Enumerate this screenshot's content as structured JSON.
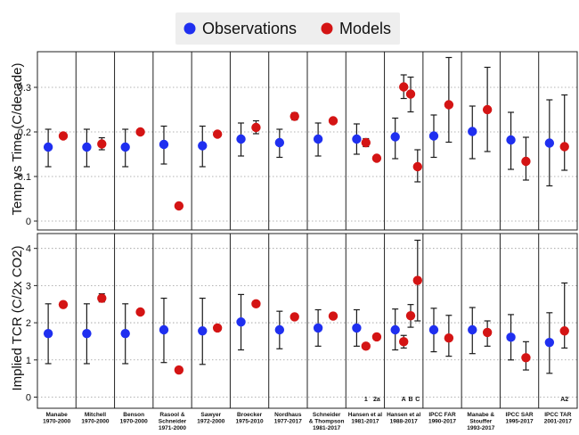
{
  "legend": {
    "observations": "Observations",
    "models": "Models"
  },
  "colors": {
    "observations": "#1f2ff0",
    "models": "#d41414",
    "errorbar": "#1a1a1a",
    "grid": "#9a9a9a",
    "legend_bg": "#eeeeee"
  },
  "chart_data": [
    {
      "type": "scatter",
      "panel": "top",
      "ylabel": "Temp vs Time (C/decade)",
      "ylim": [
        -0.02,
        0.38
      ],
      "yticks": [
        0,
        0.1,
        0.2,
        0.3
      ],
      "grid": "horizontal dotted",
      "columns": [
        {
          "label": [
            "Manabe",
            "1970-2000"
          ],
          "obs": [
            0.166,
            0.122,
            0.206
          ],
          "models": [
            [
              0.191,
              null,
              null
            ]
          ]
        },
        {
          "label": [
            "Mitchell",
            "1970-2000"
          ],
          "obs": [
            0.166,
            0.122,
            0.206
          ],
          "models": [
            [
              0.173,
              0.16,
              0.187
            ]
          ]
        },
        {
          "label": [
            "Benson",
            "1970-2000"
          ],
          "obs": [
            0.166,
            0.122,
            0.206
          ],
          "models": [
            [
              0.2,
              null,
              null
            ]
          ]
        },
        {
          "label": [
            "Rasool &",
            "Schneider",
            "1971-2000"
          ],
          "obs": [
            0.172,
            0.128,
            0.213
          ],
          "models": [
            [
              0.034,
              null,
              null
            ]
          ]
        },
        {
          "label": [
            "Sawyer",
            "1972-2000"
          ],
          "obs": [
            0.169,
            0.122,
            0.213
          ],
          "models": [
            [
              0.195,
              null,
              null
            ]
          ]
        },
        {
          "label": [
            "Broecker",
            "1975-2010"
          ],
          "obs": [
            0.184,
            0.146,
            0.22
          ],
          "models": [
            [
              0.21,
              0.196,
              0.225
            ]
          ]
        },
        {
          "label": [
            "Nordhaus",
            "1977-2017"
          ],
          "obs": [
            0.176,
            0.143,
            0.206
          ],
          "models": [
            [
              0.235,
              0.227,
              0.243
            ]
          ]
        },
        {
          "label": [
            "Schneider",
            "& Thompson",
            "1981-2017"
          ],
          "obs": [
            0.184,
            0.146,
            0.22
          ],
          "models": [
            [
              0.225,
              null,
              null
            ]
          ]
        },
        {
          "label": [
            "Hansen et al",
            "1981-2017"
          ],
          "obs": [
            0.184,
            0.15,
            0.218
          ],
          "models": [
            [
              0.176,
              0.167,
              0.185
            ],
            [
              0.141,
              null,
              null
            ]
          ],
          "sublabels": [
            "1",
            "2a"
          ]
        },
        {
          "label": [
            "Hansen et al",
            "1988-2017"
          ],
          "obs": [
            0.189,
            0.14,
            0.231
          ],
          "models": [
            [
              0.301,
              0.275,
              0.328
            ],
            [
              0.285,
              0.245,
              0.323
            ],
            [
              0.122,
              0.088,
              0.16
            ]
          ],
          "sublabels": [
            "A",
            "B",
            "C"
          ]
        },
        {
          "label": [
            "IPCC FAR",
            "1990-2017"
          ],
          "obs": [
            0.191,
            0.143,
            0.238
          ],
          "models": [
            [
              0.261,
              0.177,
              0.367
            ]
          ]
        },
        {
          "label": [
            "Manabe &",
            "Stouffer",
            "1993-2017"
          ],
          "obs": [
            0.201,
            0.14,
            0.258
          ],
          "models": [
            [
              0.25,
              0.156,
              0.345
            ]
          ]
        },
        {
          "label": [
            "IPCC SAR",
            "1995-2017"
          ],
          "obs": [
            0.182,
            0.116,
            0.244
          ],
          "models": [
            [
              0.134,
              0.092,
              0.188
            ]
          ]
        },
        {
          "label": [
            "IPCC TAR",
            "2001-2017"
          ],
          "obs": [
            0.175,
            0.079,
            0.272
          ],
          "models": [
            [
              0.167,
              0.114,
              0.283
            ]
          ],
          "sublabels": [
            "A2"
          ]
        }
      ]
    },
    {
      "type": "scatter",
      "panel": "bottom",
      "ylabel": "Implied TCR (C/2x CO2)",
      "ylim": [
        -0.3,
        4.4
      ],
      "yticks": [
        0,
        1,
        2,
        3,
        4
      ],
      "grid": "horizontal dotted",
      "columns": [
        {
          "obs": [
            1.71,
            0.9,
            2.51
          ],
          "models": [
            [
              2.49,
              null,
              null
            ]
          ]
        },
        {
          "obs": [
            1.71,
            0.9,
            2.51
          ],
          "models": [
            [
              2.66,
              2.56,
              2.78
            ]
          ]
        },
        {
          "obs": [
            1.71,
            0.9,
            2.51
          ],
          "models": [
            [
              2.29,
              null,
              null
            ]
          ]
        },
        {
          "obs": [
            1.81,
            0.93,
            2.66
          ],
          "models": [
            [
              0.73,
              null,
              null
            ]
          ]
        },
        {
          "obs": [
            1.78,
            0.88,
            2.66
          ],
          "models": [
            [
              1.86,
              null,
              null
            ]
          ]
        },
        {
          "obs": [
            2.02,
            1.27,
            2.76
          ],
          "models": [
            [
              2.51,
              null,
              null
            ]
          ]
        },
        {
          "obs": [
            1.81,
            1.3,
            2.31
          ],
          "models": [
            [
              2.16,
              null,
              null
            ]
          ]
        },
        {
          "obs": [
            1.86,
            1.37,
            2.35
          ],
          "models": [
            [
              2.18,
              null,
              null
            ]
          ]
        },
        {
          "obs": [
            1.86,
            1.37,
            2.35
          ],
          "models": [
            [
              1.37,
              null,
              null
            ],
            [
              1.62,
              null,
              null
            ]
          ]
        },
        {
          "obs": [
            1.81,
            1.27,
            2.37
          ],
          "models": [
            [
              1.49,
              1.32,
              1.66
            ],
            [
              2.19,
              1.88,
              2.49
            ],
            [
              3.14,
              2.05,
              4.22
            ]
          ]
        },
        {
          "obs": [
            1.81,
            1.22,
            2.39
          ],
          "models": [
            [
              1.59,
              1.1,
              2.2
            ]
          ]
        },
        {
          "obs": [
            1.81,
            1.17,
            2.41
          ],
          "models": [
            [
              1.74,
              1.37,
              2.05
            ]
          ]
        },
        {
          "obs": [
            1.61,
            1.0,
            2.22
          ],
          "models": [
            [
              1.06,
              0.73,
              1.49
            ]
          ]
        },
        {
          "obs": [
            1.47,
            0.64,
            2.27
          ],
          "models": [
            [
              1.78,
              1.32,
              3.07
            ]
          ]
        }
      ]
    }
  ]
}
